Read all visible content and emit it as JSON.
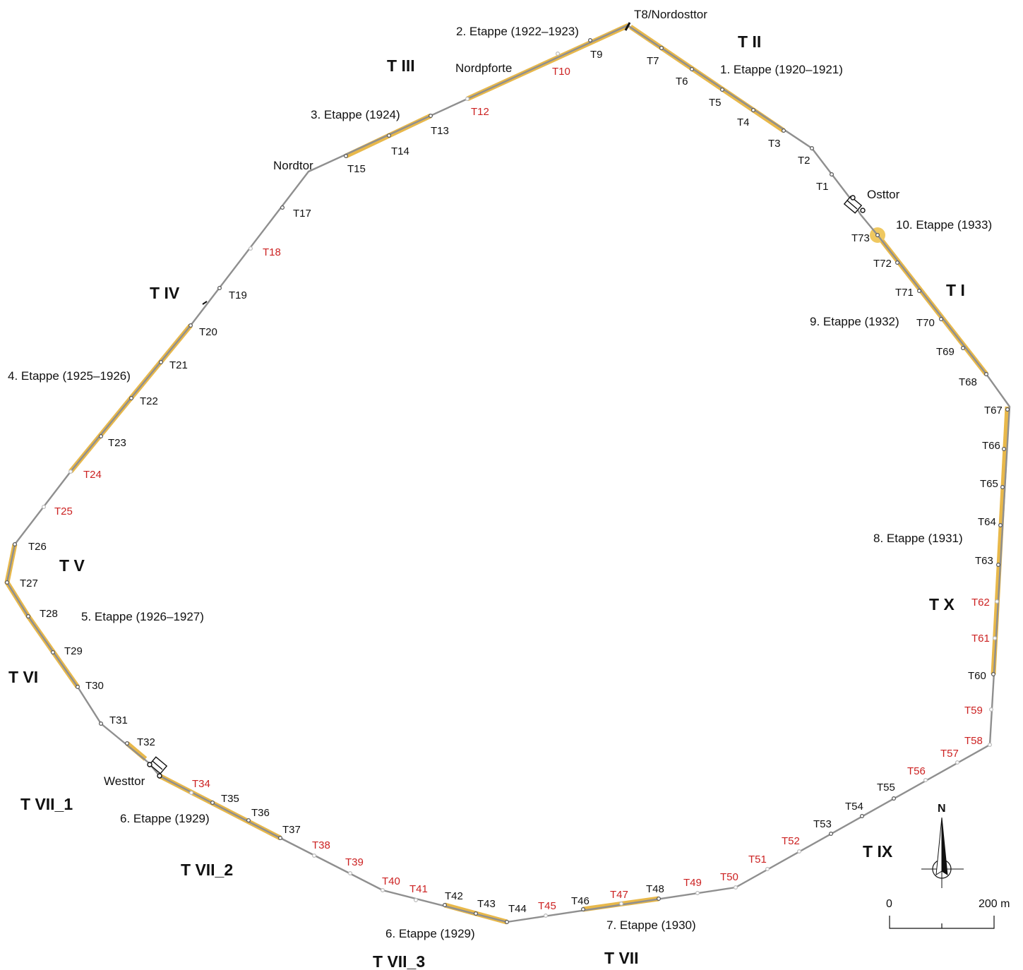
{
  "colors": {
    "wall": "#9a9a9a",
    "stage": "#e8b84a",
    "label_default": "#111111",
    "label_missing": "#cc2222"
  },
  "gates": {
    "nordosttor": "T8/Nordosttor",
    "osttor": "Osttor",
    "westtor": "Westtor",
    "nordtor": "Nordtor",
    "nordpforte": "Nordpforte"
  },
  "sections": {
    "t1": "T I",
    "t2": "T II",
    "t3": "T III",
    "t4": "T IV",
    "t5": "T V",
    "t6": "T VI",
    "t7_1": "T VII_1",
    "t7_2": "T VII_2",
    "t7_3": "T VII_3",
    "t7": "T VII",
    "t9": "T IX",
    "t10": "T X"
  },
  "stages": {
    "s1": "1. Etappe (1920–1921)",
    "s2": "2. Etappe (1922–1923)",
    "s3": "3. Etappe (1924)",
    "s4": "4. Etappe (1925–1926)",
    "s5": "5. Etappe (1926–1927)",
    "s6a": "6. Etappe (1929)",
    "s6b": "6. Etappe (1929)",
    "s7": "7. Etappe (1930)",
    "s8": "8. Etappe (1931)",
    "s9": "9. Etappe (1932)",
    "s10": "10. Etappe (1933)"
  },
  "towers": [
    {
      "id": "T1",
      "missing": false
    },
    {
      "id": "T2",
      "missing": false
    },
    {
      "id": "T3",
      "missing": false
    },
    {
      "id": "T4",
      "missing": false
    },
    {
      "id": "T5",
      "missing": false
    },
    {
      "id": "T6",
      "missing": false
    },
    {
      "id": "T7",
      "missing": false
    },
    {
      "id": "T9",
      "missing": false
    },
    {
      "id": "T10",
      "missing": true
    },
    {
      "id": "T12",
      "missing": true
    },
    {
      "id": "T13",
      "missing": false
    },
    {
      "id": "T14",
      "missing": false
    },
    {
      "id": "T15",
      "missing": false
    },
    {
      "id": "T17",
      "missing": false
    },
    {
      "id": "T18",
      "missing": true
    },
    {
      "id": "T19",
      "missing": false
    },
    {
      "id": "T20",
      "missing": false
    },
    {
      "id": "T21",
      "missing": false
    },
    {
      "id": "T22",
      "missing": false
    },
    {
      "id": "T23",
      "missing": false
    },
    {
      "id": "T24",
      "missing": true
    },
    {
      "id": "T25",
      "missing": true
    },
    {
      "id": "T26",
      "missing": false
    },
    {
      "id": "T27",
      "missing": false
    },
    {
      "id": "T28",
      "missing": false
    },
    {
      "id": "T29",
      "missing": false
    },
    {
      "id": "T30",
      "missing": false
    },
    {
      "id": "T31",
      "missing": false
    },
    {
      "id": "T32",
      "missing": false
    },
    {
      "id": "T34",
      "missing": true
    },
    {
      "id": "T35",
      "missing": false
    },
    {
      "id": "T36",
      "missing": false
    },
    {
      "id": "T37",
      "missing": false
    },
    {
      "id": "T38",
      "missing": true
    },
    {
      "id": "T39",
      "missing": true
    },
    {
      "id": "T40",
      "missing": true
    },
    {
      "id": "T41",
      "missing": true
    },
    {
      "id": "T42",
      "missing": false
    },
    {
      "id": "T43",
      "missing": false
    },
    {
      "id": "T44",
      "missing": false
    },
    {
      "id": "T45",
      "missing": true
    },
    {
      "id": "T46",
      "missing": false
    },
    {
      "id": "T47",
      "missing": true
    },
    {
      "id": "T48",
      "missing": false
    },
    {
      "id": "T49",
      "missing": true
    },
    {
      "id": "T50",
      "missing": true
    },
    {
      "id": "T51",
      "missing": true
    },
    {
      "id": "T52",
      "missing": true
    },
    {
      "id": "T53",
      "missing": false
    },
    {
      "id": "T54",
      "missing": false
    },
    {
      "id": "T55",
      "missing": false
    },
    {
      "id": "T56",
      "missing": true
    },
    {
      "id": "T57",
      "missing": true
    },
    {
      "id": "T58",
      "missing": true
    },
    {
      "id": "T59",
      "missing": true
    },
    {
      "id": "T60",
      "missing": false
    },
    {
      "id": "T61",
      "missing": true
    },
    {
      "id": "T62",
      "missing": true
    },
    {
      "id": "T63",
      "missing": false
    },
    {
      "id": "T64",
      "missing": false
    },
    {
      "id": "T65",
      "missing": false
    },
    {
      "id": "T66",
      "missing": false
    },
    {
      "id": "T67",
      "missing": false
    },
    {
      "id": "T68",
      "missing": false
    },
    {
      "id": "T69",
      "missing": false
    },
    {
      "id": "T70",
      "missing": false
    },
    {
      "id": "T71",
      "missing": false
    },
    {
      "id": "T72",
      "missing": false
    },
    {
      "id": "T73",
      "missing": false
    }
  ],
  "compass": {
    "north": "N"
  },
  "scale": {
    "start": "0",
    "end": "200 m"
  }
}
